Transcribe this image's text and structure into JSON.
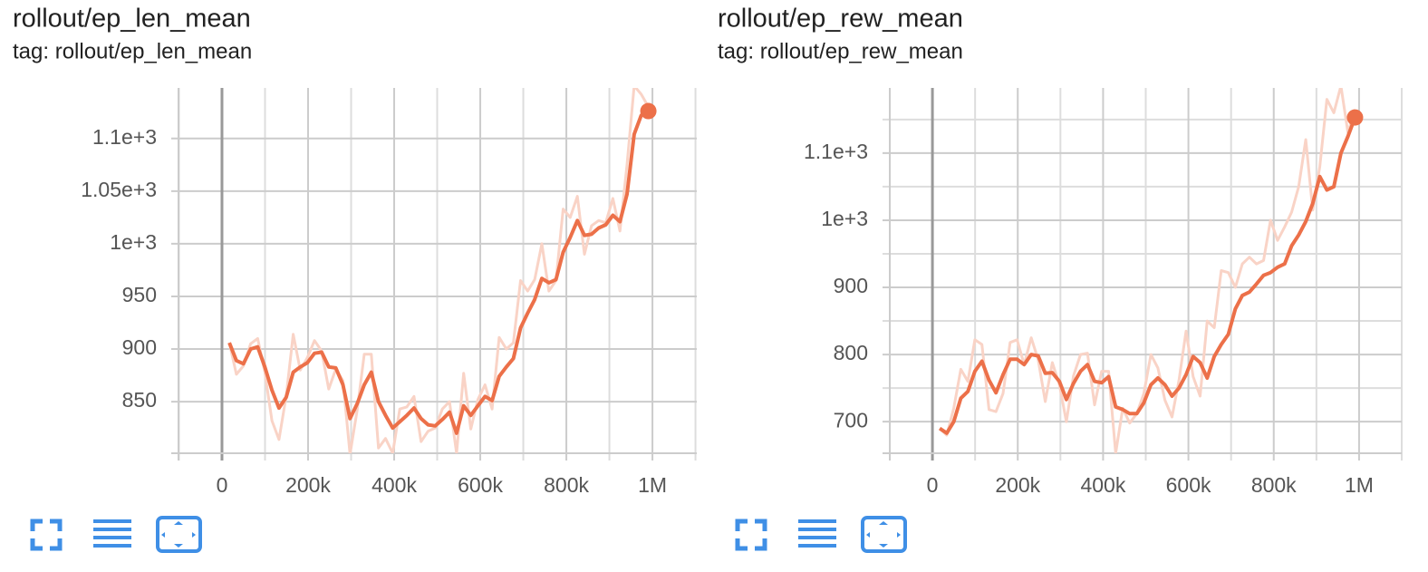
{
  "chart_data": [
    {
      "type": "line",
      "title": "rollout/ep_len_mean",
      "subtitle": "tag: rollout/ep_len_mean",
      "x": [
        17000,
        33500,
        50000,
        66500,
        83000,
        99500,
        116000,
        132500,
        149000,
        165500,
        182000,
        198500,
        215000,
        231500,
        248000,
        264500,
        281000,
        297500,
        314000,
        330500,
        347000,
        363500,
        380000,
        396500,
        413000,
        429500,
        446000,
        462500,
        479000,
        495500,
        512000,
        528500,
        545000,
        561500,
        578000,
        594500,
        611000,
        627500,
        644000,
        660500,
        677000,
        693500,
        710000,
        726500,
        743000,
        759500,
        776000,
        792500,
        809000,
        825500,
        842000,
        858500,
        875000,
        891500,
        908000,
        924500,
        941000,
        957500,
        974000,
        990500
      ],
      "series": [
        {
          "color": "#f9d3c6",
          "values": [
            906,
            876,
            884,
            905,
            910,
            878,
            832,
            814,
            855,
            914,
            880,
            892,
            908,
            898,
            862,
            881,
            870,
            800,
            842,
            895,
            895,
            806,
            815,
            801,
            843,
            845,
            855,
            812,
            822,
            825,
            843,
            850,
            801,
            877,
            824,
            852,
            866,
            843,
            911,
            900,
            906,
            965,
            955,
            966,
            1000,
            955,
            965,
            1033,
            1025,
            1045,
            990,
            1017,
            1022,
            1020,
            1043,
            1012,
            1075,
            1150,
            1142,
            1130
          ]
        },
        {
          "color": "#ec7049",
          "values": [
            906,
            889,
            886,
            900,
            902,
            883,
            861,
            844,
            854,
            878,
            883,
            887,
            896,
            897,
            883,
            882,
            866,
            834,
            848,
            866,
            878,
            850,
            837,
            825,
            831,
            837,
            844,
            834,
            828,
            827,
            833,
            840,
            820,
            846,
            837,
            846,
            855,
            851,
            874,
            883,
            891,
            920,
            934,
            947,
            967,
            963,
            966,
            992,
            1006,
            1022,
            1008,
            1009,
            1015,
            1018,
            1027,
            1021,
            1047,
            1104,
            1122,
            1126
          ]
        }
      ],
      "xlim": [
        -101000,
        1103000
      ],
      "ylim": [
        801,
        1148
      ],
      "xticks": [
        0,
        {
          "value": 200000,
          "label": "200k"
        },
        {
          "value": 400000,
          "label": "400k"
        },
        {
          "value": 600000,
          "label": "600k"
        },
        {
          "value": 800000,
          "label": "800k"
        },
        {
          "value": 1000000,
          "label": "1M"
        }
      ],
      "yticks": [
        850,
        900,
        950,
        {
          "value": 1000,
          "label": "1e+3"
        },
        {
          "value": 1050,
          "label": "1.05e+3"
        },
        {
          "value": 1100,
          "label": "1.1e+3"
        }
      ],
      "grid": true,
      "minor_grid": [
        "x"
      ]
    },
    {
      "type": "line",
      "title": "rollout/ep_rew_mean",
      "subtitle": "tag: rollout/ep_rew_mean",
      "x": [
        17000,
        33500,
        50000,
        66500,
        83000,
        99500,
        116000,
        132500,
        149000,
        165500,
        182000,
        198500,
        215000,
        231500,
        248000,
        264500,
        281000,
        297500,
        314000,
        330500,
        347000,
        363500,
        380000,
        396500,
        413000,
        429500,
        446000,
        462500,
        479000,
        495500,
        512000,
        528500,
        545000,
        561500,
        578000,
        594500,
        611000,
        627500,
        644000,
        660500,
        677000,
        693500,
        710000,
        726500,
        743000,
        759500,
        776000,
        792500,
        809000,
        825500,
        842000,
        858500,
        875000,
        891500,
        908000,
        924500,
        941000,
        957500,
        974000,
        990500
      ],
      "series": [
        {
          "color": "#f9d3c6",
          "values": [
            690,
            680,
            720,
            778,
            760,
            822,
            815,
            718,
            715,
            742,
            818,
            822,
            785,
            825,
            792,
            730,
            788,
            755,
            700,
            768,
            800,
            802,
            725,
            775,
            775,
            653,
            720,
            698,
            712,
            742,
            800,
            780,
            732,
            707,
            762,
            835,
            767,
            738,
            850,
            840,
            925,
            922,
            900,
            935,
            945,
            935,
            940,
            1000,
            970,
            990,
            1012,
            1050,
            1120,
            1015,
            1080,
            1180,
            1160,
            1200,
            1130,
            1165
          ]
        },
        {
          "color": "#ec7049",
          "values": [
            690,
            683,
            700,
            735,
            745,
            775,
            790,
            762,
            743,
            770,
            793,
            793,
            785,
            800,
            798,
            772,
            773,
            760,
            733,
            757,
            775,
            785,
            760,
            758,
            767,
            722,
            718,
            712,
            712,
            728,
            755,
            765,
            755,
            738,
            750,
            770,
            797,
            788,
            765,
            797,
            815,
            830,
            868,
            888,
            893,
            905,
            918,
            922,
            930,
            935,
            962,
            978,
            998,
            1025,
            1065,
            1045,
            1050,
            1100,
            1125,
            1153
          ]
        }
      ],
      "xlim": [
        -100000,
        1100000
      ],
      "ylim": [
        653,
        1197
      ],
      "xticks": [
        0,
        {
          "value": 200000,
          "label": "200k"
        },
        {
          "value": 400000,
          "label": "400k"
        },
        {
          "value": 600000,
          "label": "600k"
        },
        {
          "value": 800000,
          "label": "800k"
        },
        {
          "value": 1000000,
          "label": "1M"
        }
      ],
      "yticks": [
        700,
        800,
        900,
        {
          "value": 1000,
          "label": "1e+3"
        },
        {
          "value": 1100,
          "label": "1.1e+3"
        }
      ],
      "grid": true,
      "minor_grid": [
        "x",
        "y"
      ]
    }
  ]
}
